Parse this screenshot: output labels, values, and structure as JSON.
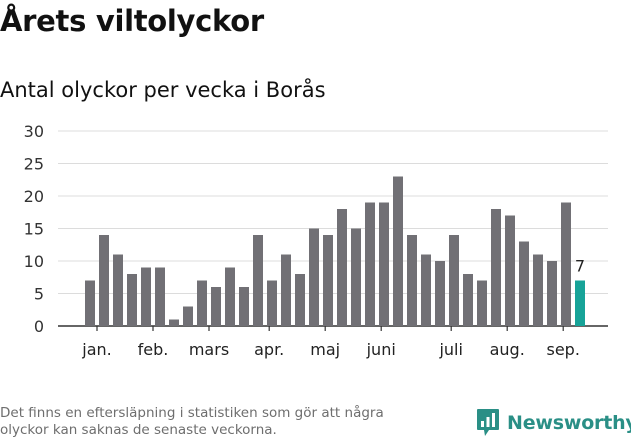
{
  "title": "Årets viltolyckor",
  "subtitle": "Antal olyckor per vecka i Borås",
  "footnote_lines": [
    "Det finns en eftersläpning i statistiken som gör att några",
    "olyckor kan saknas de senaste veckorna."
  ],
  "brand": {
    "name": "Newsworthy",
    "icon": "newsworthy-logo-icon",
    "color": "#2a8f86"
  },
  "chart_data": {
    "type": "bar",
    "y_ticks": [
      0,
      5,
      10,
      15,
      20,
      25,
      30
    ],
    "ylim": [
      0,
      30
    ],
    "grid": true,
    "values": [
      7,
      14,
      11,
      8,
      9,
      9,
      1,
      3,
      7,
      6,
      9,
      6,
      14,
      7,
      11,
      8,
      15,
      14,
      18,
      15,
      19,
      19,
      23,
      14,
      11,
      10,
      14,
      8,
      7,
      18,
      17,
      13,
      11,
      10,
      19,
      7
    ],
    "month_labels": [
      {
        "label": "jan.",
        "week_index": 0.5
      },
      {
        "label": "feb.",
        "week_index": 4.5
      },
      {
        "label": "mars",
        "week_index": 8.5
      },
      {
        "label": "apr.",
        "week_index": 12.8
      },
      {
        "label": "maj",
        "week_index": 16.8
      },
      {
        "label": "juni",
        "week_index": 20.8
      },
      {
        "label": "juli",
        "week_index": 25.8
      },
      {
        "label": "aug.",
        "week_index": 29.8
      },
      {
        "label": "sep.",
        "week_index": 33.8
      }
    ],
    "highlight_index": 35,
    "highlight_label": "7",
    "bar_color": "#717075",
    "highlight_color": "#17a398",
    "grid_color": "#dcdcdc",
    "axis_color": "#333333"
  }
}
